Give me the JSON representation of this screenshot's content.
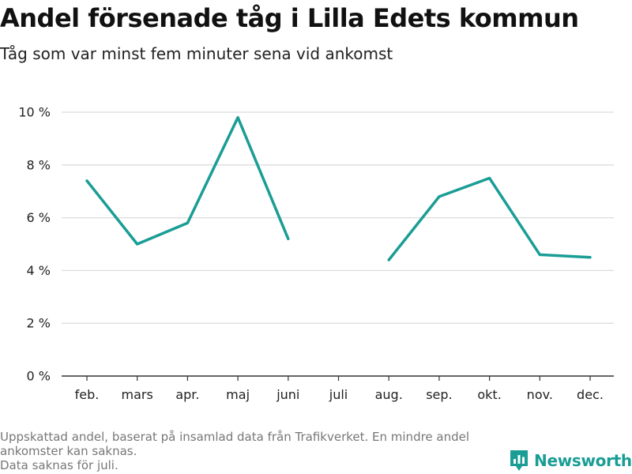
{
  "header": {
    "title": "Andel försenade tåg i Lilla Edets kommun",
    "subtitle": "Tåg som var minst fem minuter sena vid ankomst"
  },
  "footnote": {
    "line1": "Uppskattad andel, baserat på insamlad data från Trafikverket. En mindre andel ankomster kan saknas.",
    "line2": "Data saknas för juli."
  },
  "brand": {
    "name": "Newsworthy",
    "icon": "newsworthy-logo-icon",
    "color": "#1a9d95"
  },
  "chart_data": {
    "type": "line",
    "title": "Andel försenade tåg i Lilla Edets kommun",
    "subtitle": "Tåg som var minst fem minuter sena vid ankomst",
    "xlabel": "",
    "ylabel": "",
    "categories": [
      "feb.",
      "mars",
      "apr.",
      "maj",
      "juni",
      "juli",
      "aug.",
      "sep.",
      "okt.",
      "nov.",
      "dec."
    ],
    "series": [
      {
        "values": [
          7.4,
          5.0,
          5.8,
          9.8,
          5.2,
          null,
          4.4,
          6.8,
          7.5,
          4.6,
          4.5
        ],
        "color": "#1a9d95"
      }
    ],
    "ylim": [
      0,
      10
    ],
    "yticks": [
      0,
      2,
      4,
      6,
      8,
      10
    ],
    "ytick_labels": [
      "0 %",
      "2 %",
      "4 %",
      "6 %",
      "8 %",
      "10 %"
    ],
    "grid": "horizontal",
    "legend": "none"
  }
}
